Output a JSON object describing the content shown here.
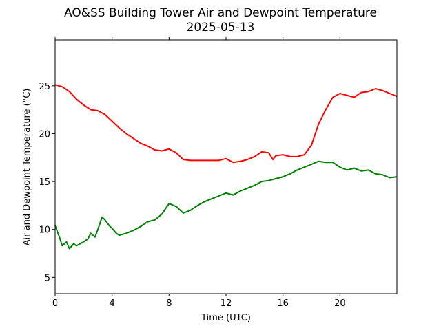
{
  "chart_data": {
    "type": "line",
    "title": "AO&SS Building Tower Air and Dewpoint Temperature",
    "subtitle": "2025-05-13",
    "xlabel": "Time (UTC)",
    "ylabel": "Air and Dewpoint Temperature (°C)",
    "xlim": [
      0,
      24
    ],
    "ylim": [
      3.3,
      29.8
    ],
    "xticks": [
      0,
      4,
      8,
      12,
      16,
      20
    ],
    "yticks": [
      5,
      10,
      15,
      20,
      25
    ],
    "grid": false,
    "legend": "none",
    "series": [
      {
        "color": "#ff0000",
        "x": [
          0,
          0.5,
          1,
          1.5,
          2,
          2.5,
          3,
          3.5,
          4,
          4.5,
          5,
          5.5,
          6,
          6.5,
          7,
          7.5,
          8,
          8.5,
          9,
          9.5,
          10,
          10.5,
          11,
          11.5,
          12,
          12.5,
          13,
          13.5,
          14,
          14.5,
          15,
          15.3,
          15.5,
          16,
          16.5,
          17,
          17.5,
          18,
          18.5,
          19,
          19.5,
          20,
          20.5,
          21,
          21.5,
          22,
          22.5,
          23,
          23.5,
          24
        ],
        "y": [
          25.1,
          24.9,
          24.4,
          23.6,
          23.0,
          22.5,
          22.4,
          22.0,
          21.3,
          20.6,
          20.0,
          19.5,
          19.0,
          18.7,
          18.3,
          18.2,
          18.4,
          18.0,
          17.3,
          17.2,
          17.2,
          17.2,
          17.2,
          17.2,
          17.4,
          17.0,
          17.1,
          17.3,
          17.6,
          18.1,
          18.0,
          17.3,
          17.7,
          17.8,
          17.6,
          17.6,
          17.8,
          18.8,
          21.0,
          22.5,
          23.8,
          24.2,
          24.0,
          23.8,
          24.3,
          24.4,
          24.7,
          24.5,
          24.2,
          23.9
        ]
      },
      {
        "color": "#008000",
        "x": [
          0,
          0.3,
          0.5,
          0.8,
          1,
          1.3,
          1.5,
          2,
          2.3,
          2.5,
          2.8,
          3,
          3.3,
          3.5,
          3.8,
          4,
          4.3,
          4.5,
          5,
          5.5,
          6,
          6.5,
          7,
          7.5,
          8,
          8.5,
          9,
          9.5,
          10,
          10.5,
          11,
          11.5,
          12,
          12.5,
          13,
          13.5,
          14,
          14.5,
          15,
          15.5,
          16,
          16.5,
          17,
          17.5,
          18,
          18.5,
          19,
          19.5,
          20,
          20.5,
          21,
          21.5,
          22,
          22.5,
          23,
          23.5,
          24
        ],
        "y": [
          10.4,
          9.2,
          8.3,
          8.7,
          8.0,
          8.5,
          8.3,
          8.7,
          9.0,
          9.6,
          9.2,
          10.0,
          11.3,
          11.0,
          10.4,
          10.1,
          9.6,
          9.4,
          9.6,
          9.9,
          10.3,
          10.8,
          11.0,
          11.6,
          12.7,
          12.4,
          11.7,
          12.0,
          12.5,
          12.9,
          13.2,
          13.5,
          13.8,
          13.6,
          14.0,
          14.3,
          14.6,
          15.0,
          15.1,
          15.3,
          15.5,
          15.8,
          16.2,
          16.5,
          16.8,
          17.1,
          17.0,
          17.0,
          16.5,
          16.2,
          16.4,
          16.1,
          16.2,
          15.8,
          15.7,
          15.4,
          15.5
        ]
      }
    ]
  }
}
